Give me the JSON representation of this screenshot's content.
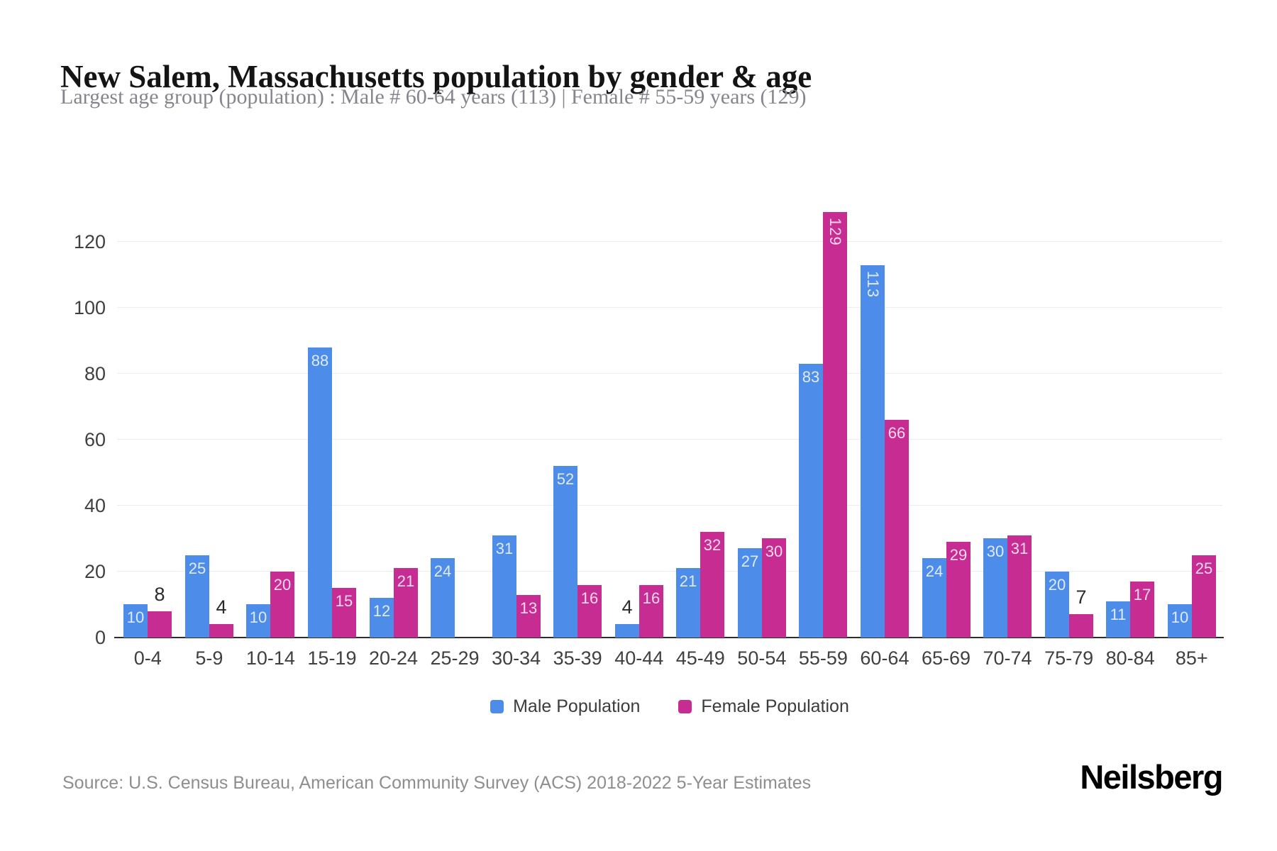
{
  "header": {
    "title": "New Salem, Massachusetts population by gender & age",
    "subtitle": "Largest age group (population) : Male # 60-64 years (113) | Female # 55-59 years (129)"
  },
  "legend": {
    "male": "Male Population",
    "female": "Female Population"
  },
  "footer": {
    "source": "Source: U.S. Census Bureau, American Community Survey (ACS) 2018-2022 5-Year Estimates",
    "brand": "Neilsberg"
  },
  "colors": {
    "male": "#4D8DE9",
    "female": "#C72C92",
    "grid": "#ededed",
    "axis": "#2e2e2e",
    "inside_label": "rgba(255,255,255,0.82)",
    "outside_label": "#2b2b2b"
  },
  "chart_data": {
    "type": "bar",
    "title": "New Salem, Massachusetts population by gender & age",
    "subtitle": "Largest age group (population) : Male # 60-64 years (113) | Female # 55-59 years (129)",
    "categories": [
      "0-4",
      "5-9",
      "10-14",
      "15-19",
      "20-24",
      "25-29",
      "30-34",
      "35-39",
      "40-44",
      "45-49",
      "50-54",
      "55-59",
      "60-64",
      "65-69",
      "70-74",
      "75-79",
      "80-84",
      "85+"
    ],
    "series": [
      {
        "name": "Male Population",
        "color": "#4D8DE9",
        "values": [
          10,
          25,
          10,
          88,
          12,
          24,
          31,
          52,
          4,
          21,
          27,
          83,
          113,
          24,
          30,
          20,
          11,
          10
        ]
      },
      {
        "name": "Female Population",
        "color": "#C72C92",
        "values": [
          8,
          4,
          20,
          15,
          21,
          0,
          13,
          16,
          16,
          32,
          30,
          129,
          66,
          29,
          31,
          7,
          17,
          25
        ]
      }
    ],
    "xlabel": "",
    "ylabel": "",
    "ylim": [
      0,
      130
    ],
    "yticks": [
      0,
      20,
      40,
      60,
      80,
      100,
      120
    ],
    "grid": "horizontal",
    "legend_position": "bottom",
    "label_rules": "values shown on bars; <10 above bar in dark text; >=100 rotated vertical inside bar; 0 hidden"
  }
}
